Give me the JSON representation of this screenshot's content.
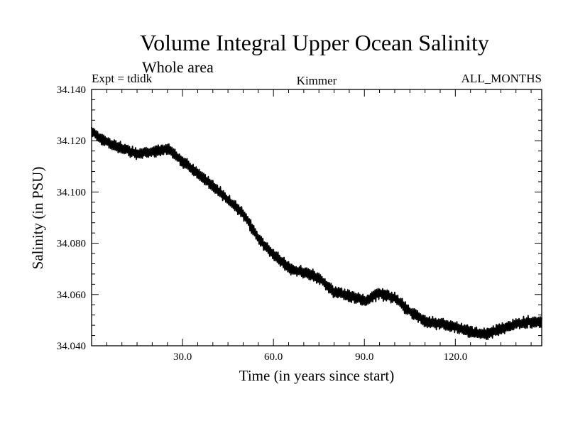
{
  "chart_data": {
    "type": "line",
    "title": "Volume Integral Upper Ocean Salinity",
    "subtitle": "Whole area",
    "header_left": "Expt = tdidk",
    "header_center": "Kimmer",
    "header_right": "ALL_MONTHS",
    "xlabel": "Time (in years since start)",
    "ylabel": "Salinity (in PSU)",
    "xlim": [
      0,
      148.5
    ],
    "ylim": [
      34.04,
      34.14
    ],
    "xticks": [
      30,
      60,
      90,
      120
    ],
    "xtick_labels": [
      "30.0",
      "60.0",
      "90.0",
      "120.0"
    ],
    "yticks": [
      34.04,
      34.06,
      34.08,
      34.1,
      34.12,
      34.14
    ],
    "ytick_labels": [
      "34.040",
      "34.060",
      "34.080",
      "34.100",
      "34.120",
      "34.140"
    ],
    "series": [
      {
        "name": "Salinity",
        "color": "#000000",
        "seasonal_amplitude": 0.0018,
        "trend_x": [
          0,
          5,
          10,
          15,
          20,
          25,
          30,
          35,
          40,
          45,
          50,
          55,
          60,
          65,
          70,
          75,
          80,
          85,
          90,
          95,
          100,
          105,
          110,
          115,
          120,
          125,
          130,
          135,
          140,
          145,
          148.5
        ],
        "trend_y": [
          34.1235,
          34.1195,
          34.117,
          34.115,
          34.1155,
          34.117,
          34.112,
          34.107,
          34.1025,
          34.097,
          34.0915,
          34.082,
          34.0755,
          34.0705,
          34.0685,
          34.0665,
          34.061,
          34.0595,
          34.0575,
          34.0605,
          34.0585,
          34.0535,
          34.0495,
          34.0485,
          34.0475,
          34.0455,
          34.0445,
          34.0465,
          34.0485,
          34.0495,
          34.049
        ]
      }
    ]
  }
}
